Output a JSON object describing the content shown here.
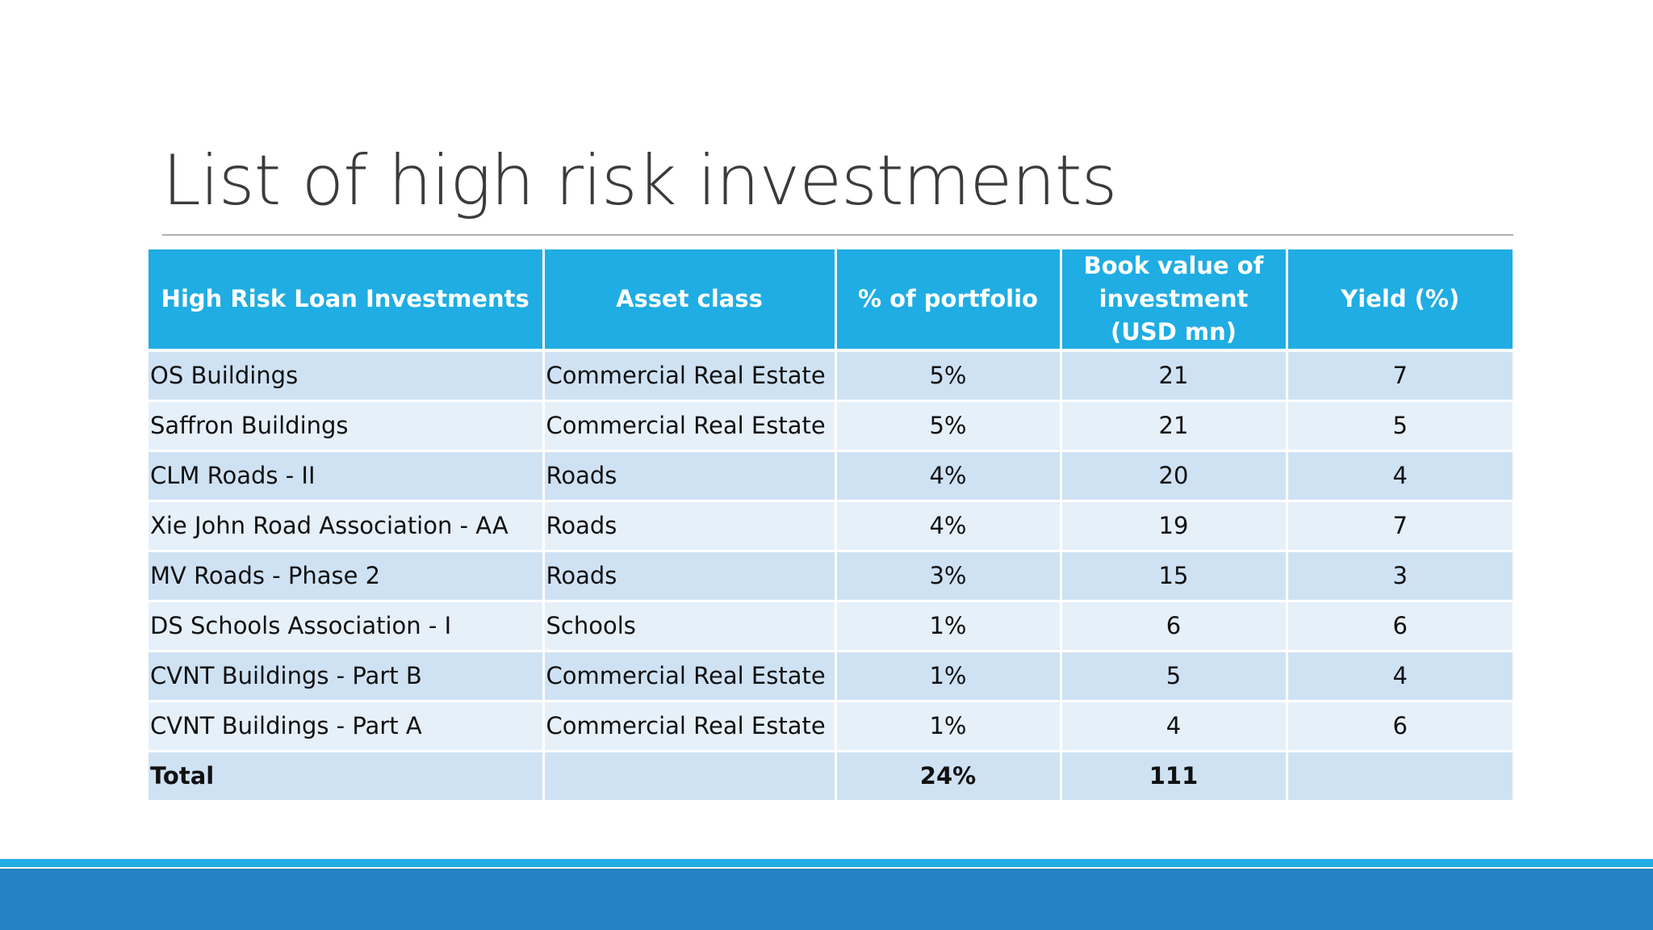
{
  "slide": {
    "title": "List of high risk investments"
  },
  "table": {
    "headers": [
      "High Risk Loan Investments",
      "Asset class",
      "% of portfolio",
      "Book value of investment (USD mn)",
      "Yield (%)"
    ],
    "rows": [
      [
        "OS Buildings",
        "Commercial Real Estate",
        "5%",
        "21",
        "7"
      ],
      [
        "Saffron Buildings",
        "Commercial Real Estate",
        "5%",
        "21",
        "5"
      ],
      [
        "CLM Roads - II",
        "Roads",
        "4%",
        "20",
        "4"
      ],
      [
        "Xie John Road Association - AA",
        "Roads",
        "4%",
        "19",
        "7"
      ],
      [
        "MV Roads - Phase 2",
        "Roads",
        "3%",
        "15",
        "3"
      ],
      [
        "DS Schools Association - I",
        "Schools",
        "1%",
        "6",
        "6"
      ],
      [
        "CVNT Buildings - Part B",
        "Commercial Real Estate",
        "1%",
        "5",
        "4"
      ],
      [
        "CVNT Buildings - Part A",
        "Commercial Real Estate",
        "1%",
        "4",
        "6"
      ]
    ],
    "total": [
      "Total",
      "",
      "24%",
      "111",
      ""
    ]
  },
  "colors": {
    "header_bg": "#1fade3",
    "row_odd_bg": "#cfe2f4",
    "row_even_bg": "#e6f0f9",
    "footer_band_light": "#1fade3",
    "footer_band_dark": "#2582c4"
  }
}
